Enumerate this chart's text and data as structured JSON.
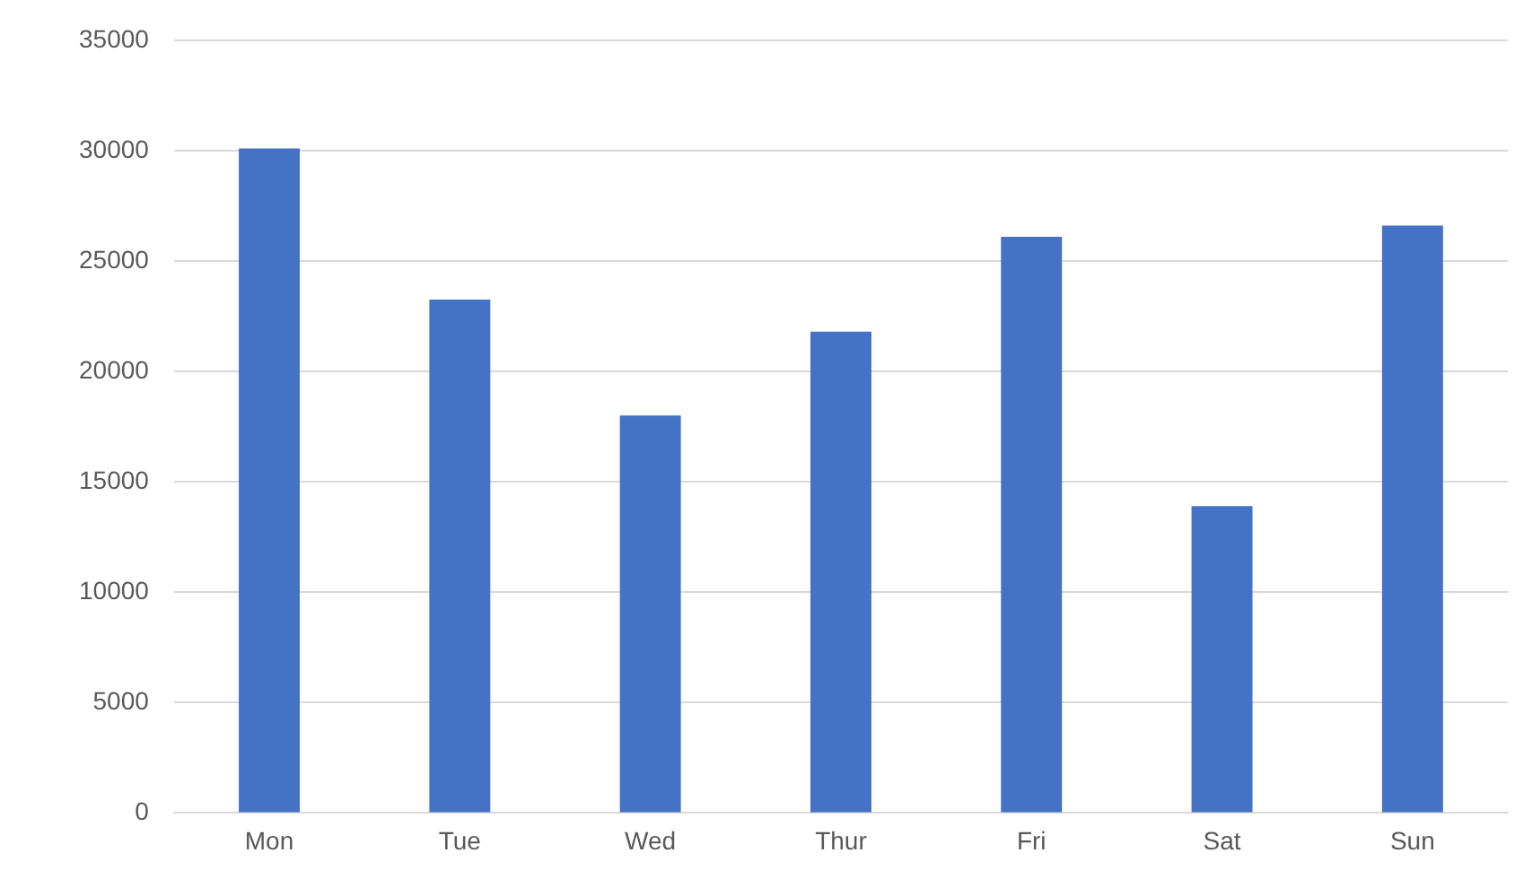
{
  "chart_data": {
    "type": "bar",
    "categories": [
      "Mon",
      "Tue",
      "Wed",
      "Thur",
      "Fri",
      "Sat",
      "Sun"
    ],
    "values": [
      30100,
      23250,
      18000,
      21800,
      26100,
      13900,
      26600
    ],
    "color": "#4472c4",
    "ylim": [
      0,
      35000
    ],
    "yticks": [
      0,
      5000,
      10000,
      15000,
      20000,
      25000,
      30000,
      35000
    ],
    "grid": "y"
  }
}
